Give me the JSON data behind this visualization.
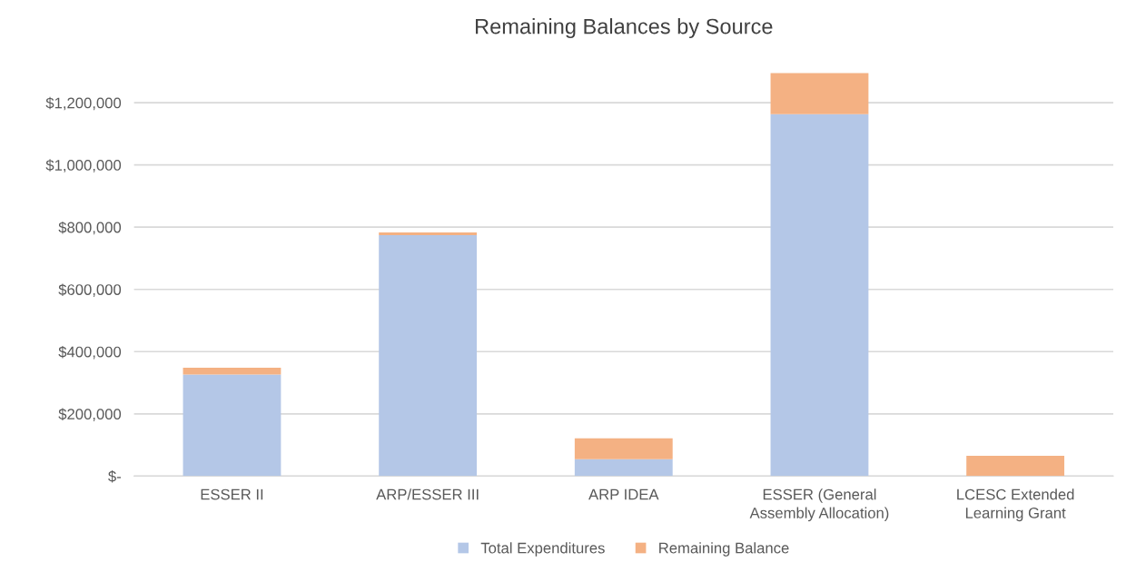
{
  "chart_data": {
    "type": "bar",
    "title": "Remaining Balances by Source",
    "stacked": true,
    "categories": [
      "ESSER II",
      "ARP/ESSER III",
      "ARP IDEA",
      "ESSER (General Assembly Allocation)",
      "LCESC Extended Learning Grant"
    ],
    "series": [
      {
        "name": "Total Expenditures",
        "color": "#b4c7e7",
        "values": [
          326000,
          774000,
          54000,
          1163000,
          0
        ]
      },
      {
        "name": "Remaining Balance",
        "color": "#f4b183",
        "values": [
          22000,
          9000,
          67000,
          132000,
          65000
        ]
      }
    ],
    "ylim": [
      0,
      1300000
    ],
    "yticks": [
      {
        "value": 0,
        "label": "$-"
      },
      {
        "value": 200000,
        "label": "$200,000"
      },
      {
        "value": 400000,
        "label": "$400,000"
      },
      {
        "value": 600000,
        "label": "$600,000"
      },
      {
        "value": 800000,
        "label": "$800,000"
      },
      {
        "value": 1000000,
        "label": "$1,000,000"
      },
      {
        "value": 1200000,
        "label": "$1,200,000"
      }
    ],
    "grid": "y",
    "legend": "bottom"
  }
}
